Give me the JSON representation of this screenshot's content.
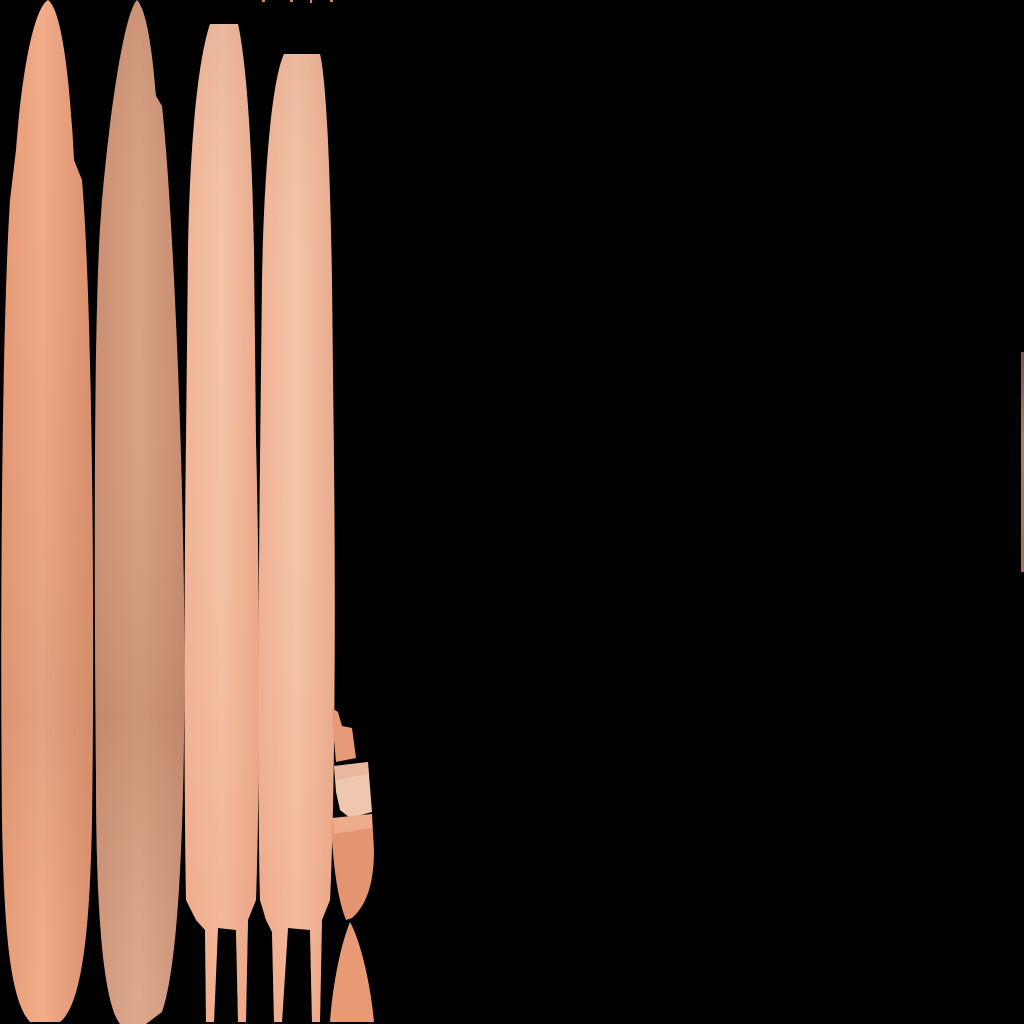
{
  "canvas": {
    "background": "#000000"
  },
  "texture": {
    "palette": {
      "peach_light": "#f2bea3",
      "peach_mid": "#eda886",
      "peach_deep": "#e39470",
      "tan": "#cc9677",
      "sand": "#e7b79d"
    },
    "strips": [
      {
        "id": "strip-1",
        "tone": "peach_mid"
      },
      {
        "id": "strip-2",
        "tone": "tan"
      },
      {
        "id": "strip-3",
        "tone": "peach_light"
      },
      {
        "id": "strip-4",
        "tone": "peach_light"
      }
    ],
    "fragments": [
      {
        "id": "fragment-top",
        "tone": "peach_deep"
      },
      {
        "id": "fragment-square",
        "tone": "sand"
      },
      {
        "id": "fragment-cup",
        "tone": "peach_deep"
      },
      {
        "id": "fragment-point",
        "tone": "peach_deep"
      }
    ]
  }
}
